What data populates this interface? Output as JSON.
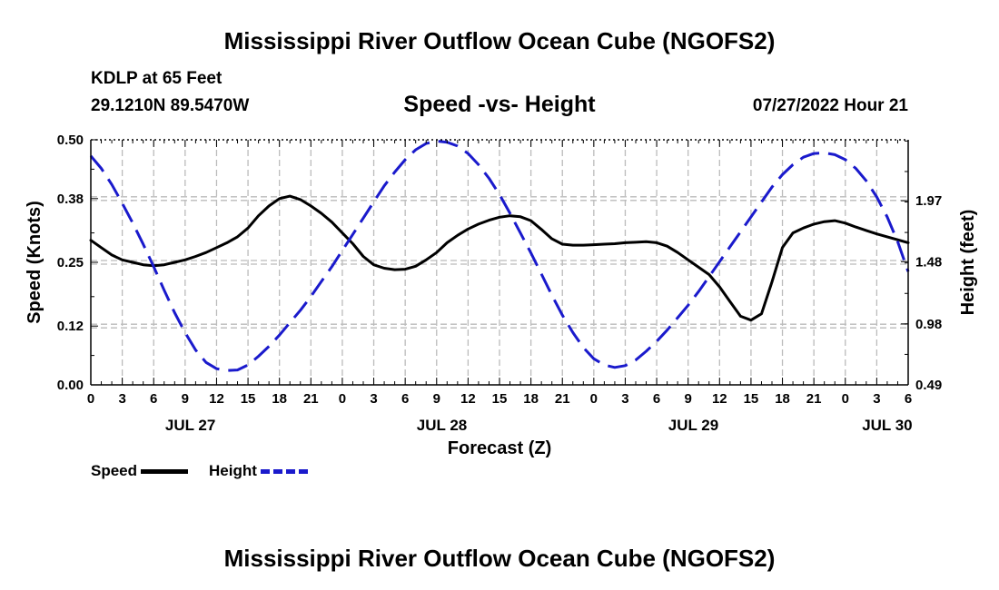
{
  "header": {
    "title": "Mississippi River Outflow Ocean Cube (NGOFS2)",
    "station": "KDLP at 65 Feet",
    "coords": "29.1210N  89.5470W",
    "subtitle": "Speed -vs- Height",
    "datetime": "07/27/2022 Hour 21"
  },
  "footer": {
    "title": "Mississippi River Outflow Ocean Cube (NGOFS2)"
  },
  "legend": {
    "speed_label": "Speed",
    "height_label": "Height"
  },
  "colors": {
    "speed": "#000000",
    "height": "#1a1acc",
    "grid": "#bbbbbb"
  },
  "chart_data": {
    "type": "line",
    "xlabel": "Forecast (Z)",
    "ylabel_left": "Speed (Knots)",
    "ylabel_right": "Height (feet)",
    "x_unit": "hours from 2022-07-27 00Z",
    "xlim": [
      0,
      78
    ],
    "x_ticks": [
      0,
      3,
      6,
      9,
      12,
      15,
      18,
      21,
      24,
      27,
      30,
      33,
      36,
      39,
      42,
      45,
      48,
      51,
      54,
      57,
      60,
      63,
      66,
      69,
      72,
      75,
      78
    ],
    "x_tick_labels": [
      "0",
      "3",
      "6",
      "9",
      "12",
      "15",
      "18",
      "21",
      "0",
      "3",
      "6",
      "9",
      "12",
      "15",
      "18",
      "21",
      "0",
      "3",
      "6",
      "9",
      "12",
      "15",
      "18",
      "21",
      "0",
      "3",
      "6"
    ],
    "date_labels": [
      {
        "x": 9.5,
        "label": "JUL 27"
      },
      {
        "x": 33.5,
        "label": "JUL 28"
      },
      {
        "x": 57.5,
        "label": "JUL 29"
      },
      {
        "x": 76,
        "label": "JUL 30"
      }
    ],
    "ylim_left": [
      0,
      0.5
    ],
    "yticks_left": [
      0.0,
      0.12,
      0.25,
      0.38,
      0.5
    ],
    "ytick_labels_left": [
      "0.00",
      "0.12",
      "0.25",
      "0.38",
      "0.50"
    ],
    "ylim_right": [
      0.49,
      2.46
    ],
    "yticks_right": [
      0.49,
      0.98,
      1.48,
      1.97
    ],
    "ytick_labels_right": [
      "0.49",
      "0.98",
      "1.48",
      "1.97"
    ],
    "series": [
      {
        "name": "Speed",
        "axis": "left",
        "style": "solid",
        "x": [
          0,
          1,
          2,
          3,
          4,
          5,
          6,
          7,
          8,
          9,
          10,
          11,
          12,
          13,
          14,
          15,
          16,
          17,
          18,
          19,
          20,
          21,
          22,
          23,
          24,
          25,
          26,
          27,
          28,
          29,
          30,
          31,
          32,
          33,
          34,
          35,
          36,
          37,
          38,
          39,
          40,
          41,
          42,
          43,
          44,
          45,
          46,
          47,
          48,
          49,
          50,
          51,
          52,
          53,
          54,
          55,
          56,
          57,
          58,
          59,
          60,
          61,
          62,
          63,
          64,
          65,
          66,
          67,
          68,
          69,
          70,
          71,
          72,
          73,
          74,
          75,
          76,
          77,
          78
        ],
        "values": [
          0.295,
          0.28,
          0.265,
          0.255,
          0.25,
          0.245,
          0.243,
          0.245,
          0.25,
          0.255,
          0.262,
          0.27,
          0.28,
          0.29,
          0.302,
          0.32,
          0.345,
          0.365,
          0.38,
          0.385,
          0.378,
          0.365,
          0.35,
          0.332,
          0.31,
          0.288,
          0.262,
          0.245,
          0.238,
          0.235,
          0.236,
          0.242,
          0.255,
          0.27,
          0.29,
          0.305,
          0.318,
          0.328,
          0.336,
          0.342,
          0.345,
          0.343,
          0.335,
          0.317,
          0.298,
          0.287,
          0.285,
          0.285,
          0.286,
          0.287,
          0.288,
          0.29,
          0.291,
          0.292,
          0.29,
          0.283,
          0.27,
          0.255,
          0.24,
          0.225,
          0.2,
          0.17,
          0.14,
          0.132,
          0.145,
          0.21,
          0.28,
          0.31,
          0.32,
          0.328,
          0.333,
          0.335,
          0.33,
          0.322,
          0.315,
          0.308,
          0.302,
          0.296,
          0.29
        ]
      },
      {
        "name": "Height",
        "axis": "right",
        "style": "dashed",
        "x": [
          0,
          1,
          2,
          3,
          4,
          5,
          6,
          7,
          8,
          9,
          10,
          11,
          12,
          13,
          14,
          15,
          16,
          17,
          18,
          19,
          20,
          21,
          22,
          23,
          24,
          25,
          26,
          27,
          28,
          29,
          30,
          31,
          32,
          33,
          34,
          35,
          36,
          37,
          38,
          39,
          40,
          41,
          42,
          43,
          44,
          45,
          46,
          47,
          48,
          49,
          50,
          51,
          52,
          53,
          54,
          55,
          56,
          57,
          58,
          59,
          60,
          61,
          62,
          63,
          64,
          65,
          66,
          67,
          68,
          69,
          70,
          71,
          72,
          73,
          74,
          75,
          76,
          77,
          78
        ],
        "values": [
          2.33,
          2.23,
          2.1,
          1.95,
          1.79,
          1.62,
          1.44,
          1.25,
          1.07,
          0.91,
          0.77,
          0.67,
          0.62,
          0.605,
          0.61,
          0.65,
          0.72,
          0.8,
          0.89,
          0.99,
          1.09,
          1.2,
          1.32,
          1.44,
          1.57,
          1.7,
          1.83,
          1.96,
          2.09,
          2.2,
          2.3,
          2.38,
          2.43,
          2.45,
          2.44,
          2.41,
          2.35,
          2.26,
          2.15,
          2.02,
          1.87,
          1.71,
          1.55,
          1.38,
          1.21,
          1.05,
          0.91,
          0.79,
          0.7,
          0.65,
          0.63,
          0.645,
          0.69,
          0.76,
          0.84,
          0.93,
          1.03,
          1.13,
          1.24,
          1.36,
          1.48,
          1.6,
          1.72,
          1.84,
          1.96,
          2.08,
          2.18,
          2.26,
          2.32,
          2.35,
          2.355,
          2.34,
          2.3,
          2.23,
          2.13,
          2.0,
          1.84,
          1.64,
          1.4
        ]
      }
    ]
  }
}
